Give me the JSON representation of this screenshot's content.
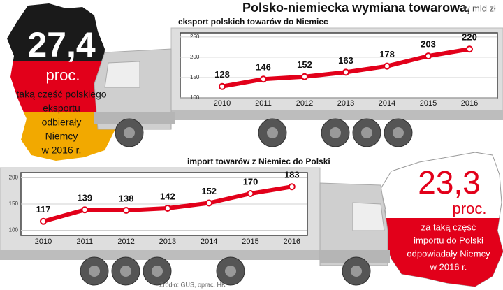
{
  "header": {
    "title": "Polsko-niemiecka wymiana towarowa,",
    "subtitle": "w mld zł"
  },
  "callouts": [
    {
      "value": "27,4",
      "unit": "proc.",
      "lines": [
        "taką część polskiego",
        "eksportu",
        "odbierały",
        "Niemcy",
        "w 2016 r."
      ]
    },
    {
      "value": "23,3",
      "unit": "proc.",
      "lines": [
        "za taką część",
        "importu do Polski",
        "odpowiadały Niemcy",
        "w 2016 r."
      ]
    }
  ],
  "source": "Źródło: GUS, oprac. HK",
  "chart_data": [
    {
      "type": "line",
      "title": "eksport polskich towarów do Niemiec",
      "categories": [
        "2010",
        "2011",
        "2012",
        "2013",
        "2014",
        "2015",
        "2016"
      ],
      "values": [
        128,
        146,
        152,
        163,
        178,
        203,
        220
      ],
      "color": "#e2001a",
      "ylim": [
        100,
        260
      ],
      "yticks": [
        100,
        150,
        200,
        250
      ],
      "grid": true
    },
    {
      "type": "line",
      "title": "import towarów z Niemiec do Polski",
      "categories": [
        "2010",
        "2011",
        "2012",
        "2013",
        "2014",
        "2015",
        "2016"
      ],
      "values": [
        117,
        139,
        138,
        142,
        152,
        170,
        183
      ],
      "color": "#e2001a",
      "ylim": [
        90,
        210
      ],
      "yticks": [
        100,
        150,
        200
      ],
      "grid": true
    }
  ]
}
